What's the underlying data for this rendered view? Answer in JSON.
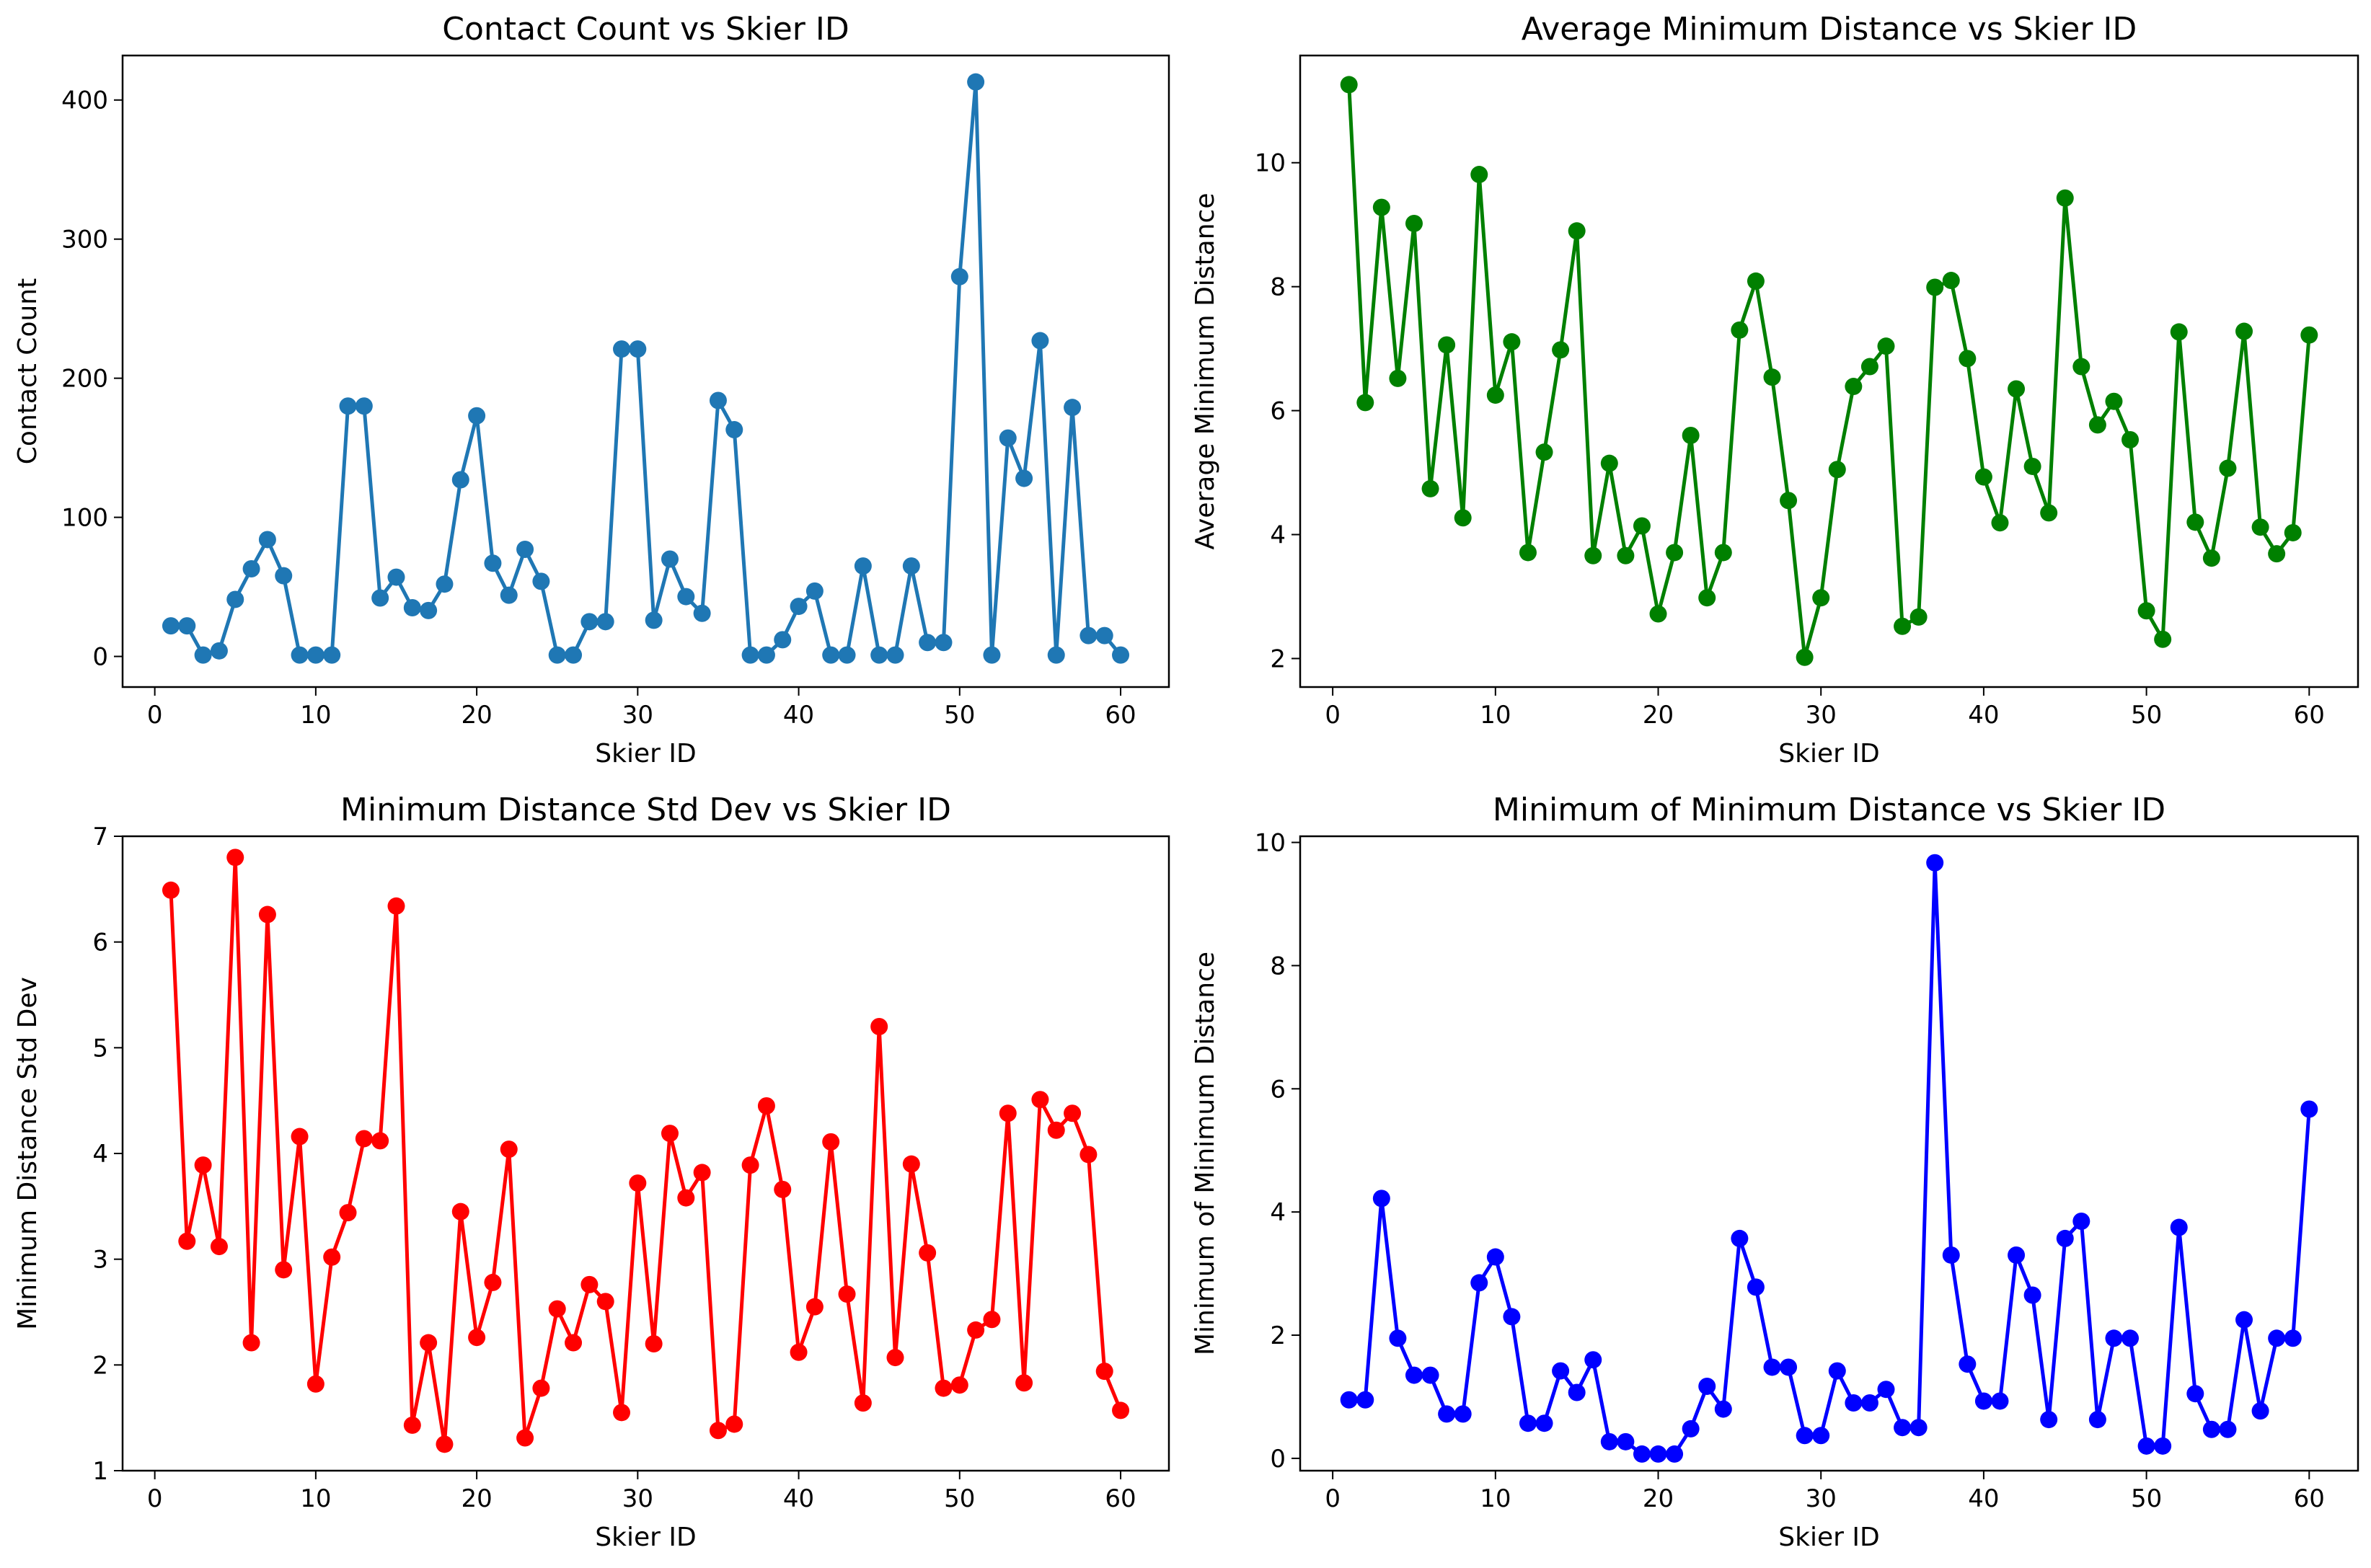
{
  "figure": {
    "background": "#ffffff"
  },
  "chart_data": [
    {
      "type": "line",
      "title": "Contact Count vs Skier ID",
      "xlabel": "Skier ID",
      "ylabel": "Contact Count",
      "xlim": [
        -2,
        63
      ],
      "ylim": [
        -22,
        432
      ],
      "xticks": [
        0,
        10,
        20,
        30,
        40,
        50,
        60
      ],
      "yticks": [
        0,
        100,
        200,
        300,
        400
      ],
      "grid": false,
      "legend": false,
      "color": "#1f77b4",
      "marker": "circle",
      "x": [
        1,
        2,
        3,
        4,
        5,
        6,
        7,
        8,
        9,
        10,
        11,
        12,
        13,
        14,
        15,
        16,
        17,
        18,
        19,
        20,
        21,
        22,
        23,
        24,
        25,
        26,
        27,
        28,
        29,
        30,
        31,
        32,
        33,
        34,
        35,
        36,
        37,
        38,
        39,
        40,
        41,
        42,
        43,
        44,
        45,
        46,
        47,
        48,
        49,
        50,
        51,
        52,
        53,
        54,
        55,
        56,
        57,
        58,
        59,
        60
      ],
      "series": [
        {
          "values": [
            22,
            22,
            1,
            4,
            41,
            63,
            84,
            58,
            1,
            1,
            1,
            180,
            180,
            42,
            57,
            35,
            33,
            52,
            127,
            173,
            67,
            44,
            77,
            54,
            1,
            1,
            25,
            25,
            221,
            221,
            26,
            70,
            43,
            31,
            184,
            163,
            1,
            1,
            12,
            36,
            47,
            1,
            1,
            65,
            1,
            1,
            65,
            10,
            10,
            273,
            413,
            1,
            157,
            128,
            227,
            1,
            179,
            15,
            15,
            1
          ]
        }
      ]
    },
    {
      "type": "line",
      "title": "Average Minimum Distance vs Skier ID",
      "xlabel": "Skier ID",
      "ylabel": "Average Minimum Distance",
      "xlim": [
        -2,
        63
      ],
      "ylim": [
        1.54,
        11.73
      ],
      "xticks": [
        0,
        10,
        20,
        30,
        40,
        50,
        60
      ],
      "yticks": [
        2,
        4,
        6,
        8,
        10
      ],
      "grid": false,
      "legend": false,
      "color": "#008000",
      "marker": "circle",
      "x": [
        1,
        2,
        3,
        4,
        5,
        6,
        7,
        8,
        9,
        10,
        11,
        12,
        13,
        14,
        15,
        16,
        17,
        18,
        19,
        20,
        21,
        22,
        23,
        24,
        25,
        26,
        27,
        28,
        29,
        30,
        31,
        32,
        33,
        34,
        35,
        36,
        37,
        38,
        39,
        40,
        41,
        42,
        43,
        44,
        45,
        46,
        47,
        48,
        49,
        50,
        51,
        52,
        53,
        54,
        55,
        56,
        57,
        58,
        59,
        60
      ],
      "series": [
        {
          "values": [
            11.26,
            6.13,
            9.28,
            6.52,
            9.02,
            4.74,
            7.06,
            4.27,
            9.81,
            6.25,
            7.11,
            3.71,
            5.33,
            6.98,
            8.9,
            3.66,
            5.15,
            3.66,
            4.14,
            2.72,
            3.71,
            5.6,
            2.98,
            3.71,
            7.3,
            8.09,
            6.54,
            4.55,
            2.02,
            2.98,
            5.05,
            6.39,
            6.71,
            7.04,
            2.52,
            2.67,
            7.99,
            8.1,
            6.84,
            4.93,
            4.19,
            6.35,
            5.1,
            4.35,
            9.43,
            6.71,
            5.77,
            6.15,
            5.53,
            2.77,
            2.31,
            7.27,
            4.2,
            3.62,
            5.07,
            7.28,
            4.12,
            3.69,
            4.03,
            7.22
          ]
        }
      ]
    },
    {
      "type": "line",
      "title": "Minimum Distance Std Dev vs Skier ID",
      "xlabel": "Skier ID",
      "ylabel": "Minimum Distance Std Dev",
      "xlim": [
        -2,
        63
      ],
      "ylim": [
        1.0,
        7.0
      ],
      "xticks": [
        0,
        10,
        20,
        30,
        40,
        50,
        60
      ],
      "yticks": [
        1,
        2,
        3,
        4,
        5,
        6,
        7
      ],
      "grid": false,
      "legend": false,
      "color": "#ff0000",
      "marker": "circle",
      "x": [
        1,
        2,
        3,
        4,
        5,
        6,
        7,
        8,
        9,
        10,
        11,
        12,
        13,
        14,
        15,
        16,
        17,
        18,
        19,
        20,
        21,
        22,
        23,
        24,
        25,
        26,
        27,
        28,
        29,
        30,
        31,
        32,
        33,
        34,
        35,
        36,
        37,
        38,
        39,
        40,
        41,
        42,
        43,
        44,
        45,
        46,
        47,
        48,
        49,
        50,
        51,
        52,
        53,
        54,
        55,
        56,
        57,
        58,
        59,
        60
      ],
      "series": [
        {
          "values": [
            6.49,
            3.17,
            3.89,
            3.12,
            6.8,
            2.21,
            6.26,
            2.9,
            4.16,
            1.82,
            3.02,
            3.44,
            4.14,
            4.12,
            6.34,
            1.43,
            2.21,
            1.25,
            3.45,
            2.26,
            2.78,
            4.04,
            1.31,
            1.78,
            2.53,
            2.21,
            2.76,
            2.6,
            1.55,
            3.72,
            2.2,
            4.19,
            3.58,
            3.82,
            1.38,
            1.44,
            3.89,
            4.45,
            3.66,
            2.12,
            2.55,
            4.11,
            2.67,
            1.64,
            5.2,
            2.07,
            3.9,
            3.06,
            1.78,
            1.81,
            2.33,
            2.43,
            4.38,
            1.83,
            4.51,
            4.22,
            4.38,
            3.99,
            1.94,
            1.57
          ]
        }
      ]
    },
    {
      "type": "line",
      "title": "Minimum of Minimum Distance vs Skier ID",
      "xlabel": "Skier ID",
      "ylabel": "Minimum of Minimum Distance",
      "xlim": [
        -2,
        63
      ],
      "ylim": [
        -0.2,
        10.1
      ],
      "xticks": [
        0,
        10,
        20,
        30,
        40,
        50,
        60
      ],
      "yticks": [
        0,
        2,
        4,
        6,
        8,
        10
      ],
      "grid": false,
      "legend": false,
      "color": "#0000ff",
      "marker": "circle",
      "x": [
        1,
        2,
        3,
        4,
        5,
        6,
        7,
        8,
        9,
        10,
        11,
        12,
        13,
        14,
        15,
        16,
        17,
        18,
        19,
        20,
        21,
        22,
        23,
        24,
        25,
        26,
        27,
        28,
        29,
        30,
        31,
        32,
        33,
        34,
        35,
        36,
        37,
        38,
        39,
        40,
        41,
        42,
        43,
        44,
        45,
        46,
        47,
        48,
        49,
        50,
        51,
        52,
        53,
        54,
        55,
        56,
        57,
        58,
        59,
        60
      ],
      "series": [
        {
          "values": [
            0.95,
            0.95,
            4.22,
            1.95,
            1.35,
            1.35,
            0.72,
            0.72,
            2.85,
            3.27,
            2.3,
            0.57,
            0.57,
            1.42,
            1.07,
            1.6,
            0.27,
            0.27,
            0.07,
            0.07,
            0.07,
            0.48,
            1.17,
            0.8,
            3.57,
            2.78,
            1.48,
            1.48,
            0.37,
            0.37,
            1.42,
            0.9,
            0.9,
            1.12,
            0.5,
            0.5,
            9.67,
            3.3,
            1.53,
            0.93,
            0.93,
            3.3,
            2.65,
            0.63,
            3.57,
            3.85,
            0.63,
            1.95,
            1.95,
            0.2,
            0.2,
            3.75,
            1.05,
            0.47,
            0.47,
            2.25,
            0.77,
            1.95,
            1.95,
            5.67
          ]
        }
      ]
    }
  ]
}
